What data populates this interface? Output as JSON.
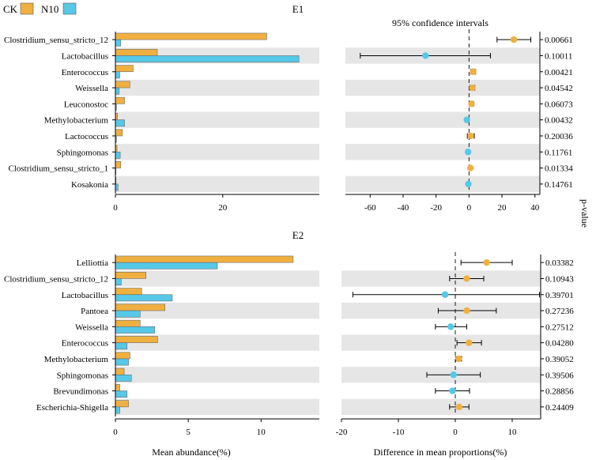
{
  "legend": {
    "entries": [
      {
        "name": "CK",
        "color": "#F0B040"
      },
      {
        "name": "N10",
        "color": "#56C8E8"
      }
    ]
  },
  "pvalue_axis_label": "p-value",
  "chart_data": [
    {
      "type": "bar",
      "panel_title": "E1",
      "categories": [
        "Clostridium_sensu_stricto_12",
        "Lactobacillus",
        "Enterococcus",
        "Weissella",
        "Leuconostoc",
        "Methylobacterium",
        "Lactococcus",
        "Sphingomonas",
        "Clostridium_sensu_stricto_1",
        "Kosakonia"
      ],
      "series": [
        {
          "name": "CK",
          "values": [
            28.2,
            7.8,
            3.3,
            2.7,
            1.7,
            0.4,
            1.3,
            0.3,
            1.0,
            0.1
          ]
        },
        {
          "name": "N10",
          "values": [
            1.0,
            34.2,
            0.8,
            0.7,
            0.2,
            1.7,
            0.2,
            0.9,
            0.1,
            0.5
          ]
        }
      ],
      "xlabel": "",
      "xlim": [
        0,
        38
      ],
      "xticks": [
        0,
        20
      ],
      "ci": {
        "title": "95% confidence intervals",
        "xlim": [
          -75,
          43
        ],
        "xticks": [
          -60,
          -40,
          -20,
          0,
          20,
          40
        ],
        "points": [
          {
            "category": "Clostridium_sensu_stricto_12",
            "diff": 27.2,
            "low": 17.0,
            "high": 37.5,
            "group": "CK",
            "p": "0.00661"
          },
          {
            "category": "Lactobacillus",
            "diff": -26.4,
            "low": -66.0,
            "high": 13.0,
            "group": "N10",
            "p": "0.10011"
          },
          {
            "category": "Enterococcus",
            "diff": 2.5,
            "low": 1.0,
            "high": 4.0,
            "group": "CK",
            "p": "0.00421"
          },
          {
            "category": "Weissella",
            "diff": 2.0,
            "low": 0.5,
            "high": 3.5,
            "group": "CK",
            "p": "0.04542"
          },
          {
            "category": "Leuconostoc",
            "diff": 1.5,
            "low": 0.2,
            "high": 2.8,
            "group": "CK",
            "p": "0.06073"
          },
          {
            "category": "Methylobacterium",
            "diff": -1.3,
            "low": -2.2,
            "high": -0.4,
            "group": "N10",
            "p": "0.00432"
          },
          {
            "category": "Lactococcus",
            "diff": 1.1,
            "low": -1.0,
            "high": 3.2,
            "group": "CK",
            "p": "0.20036"
          },
          {
            "category": "Sphingomonas",
            "diff": -0.6,
            "low": -1.5,
            "high": 0.3,
            "group": "N10",
            "p": "0.11761"
          },
          {
            "category": "Clostridium_sensu_stricto_1",
            "diff": 0.9,
            "low": 0.3,
            "high": 1.5,
            "group": "CK",
            "p": "0.01334"
          },
          {
            "category": "Kosakonia",
            "diff": -0.4,
            "low": -1.0,
            "high": 0.2,
            "group": "N10",
            "p": "0.14761"
          }
        ]
      }
    },
    {
      "type": "bar",
      "panel_title": "E2",
      "categories": [
        "Lelliottia",
        "Clostridium_sensu_stricto_12",
        "Lactobacillus",
        "Pantoea",
        "Weissella",
        "Enterococcus",
        "Methylobacterium",
        "Sphingomonas",
        "Brevundimonas",
        "Escherichia-Shigella"
      ],
      "series": [
        {
          "name": "CK",
          "values": [
            12.2,
            2.1,
            1.8,
            3.4,
            1.7,
            2.9,
            1.0,
            0.6,
            0.3,
            0.9
          ]
        },
        {
          "name": "N10",
          "values": [
            7.0,
            0.4,
            3.9,
            1.7,
            2.7,
            0.8,
            0.9,
            1.1,
            0.8,
            0.3
          ]
        }
      ],
      "xlabel": "Mean abundance(%)",
      "xlim": [
        0,
        14
      ],
      "xticks": [
        0,
        5,
        10
      ],
      "ci": {
        "title": "",
        "xlabel": "Difference in mean proportions(%)",
        "xlim": [
          -20,
          15
        ],
        "xticks": [
          -20,
          -10,
          0,
          10
        ],
        "points": [
          {
            "category": "Lelliottia",
            "diff": 5.5,
            "low": 1.0,
            "high": 10.0,
            "group": "CK",
            "p": "0.03382"
          },
          {
            "category": "Clostridium_sensu_stricto_12",
            "diff": 2.0,
            "low": -1.0,
            "high": 5.0,
            "group": "CK",
            "p": "0.10943"
          },
          {
            "category": "Lactobacillus",
            "diff": -1.8,
            "low": -18.0,
            "high": 14.8,
            "group": "N10",
            "p": "0.39701"
          },
          {
            "category": "Pantoea",
            "diff": 2.0,
            "low": -3.0,
            "high": 7.2,
            "group": "CK",
            "p": "0.27236"
          },
          {
            "category": "Weissella",
            "diff": -0.8,
            "low": -3.5,
            "high": 2.0,
            "group": "N10",
            "p": "0.27512"
          },
          {
            "category": "Enterococcus",
            "diff": 2.4,
            "low": 0.3,
            "high": 4.6,
            "group": "CK",
            "p": "0.04280"
          },
          {
            "category": "Methylobacterium",
            "diff": 0.6,
            "low": 0.1,
            "high": 1.1,
            "group": "CK",
            "p": "0.39052"
          },
          {
            "category": "Sphingomonas",
            "diff": -0.3,
            "low": -5.0,
            "high": 4.4,
            "group": "N10",
            "p": "0.39506"
          },
          {
            "category": "Brevundimonas",
            "diff": -0.5,
            "low": -3.5,
            "high": 2.5,
            "group": "N10",
            "p": "0.28856"
          },
          {
            "category": "Escherichia-Shigella",
            "diff": 0.7,
            "low": -1.0,
            "high": 2.4,
            "group": "CK",
            "p": "0.24409"
          }
        ]
      }
    }
  ]
}
